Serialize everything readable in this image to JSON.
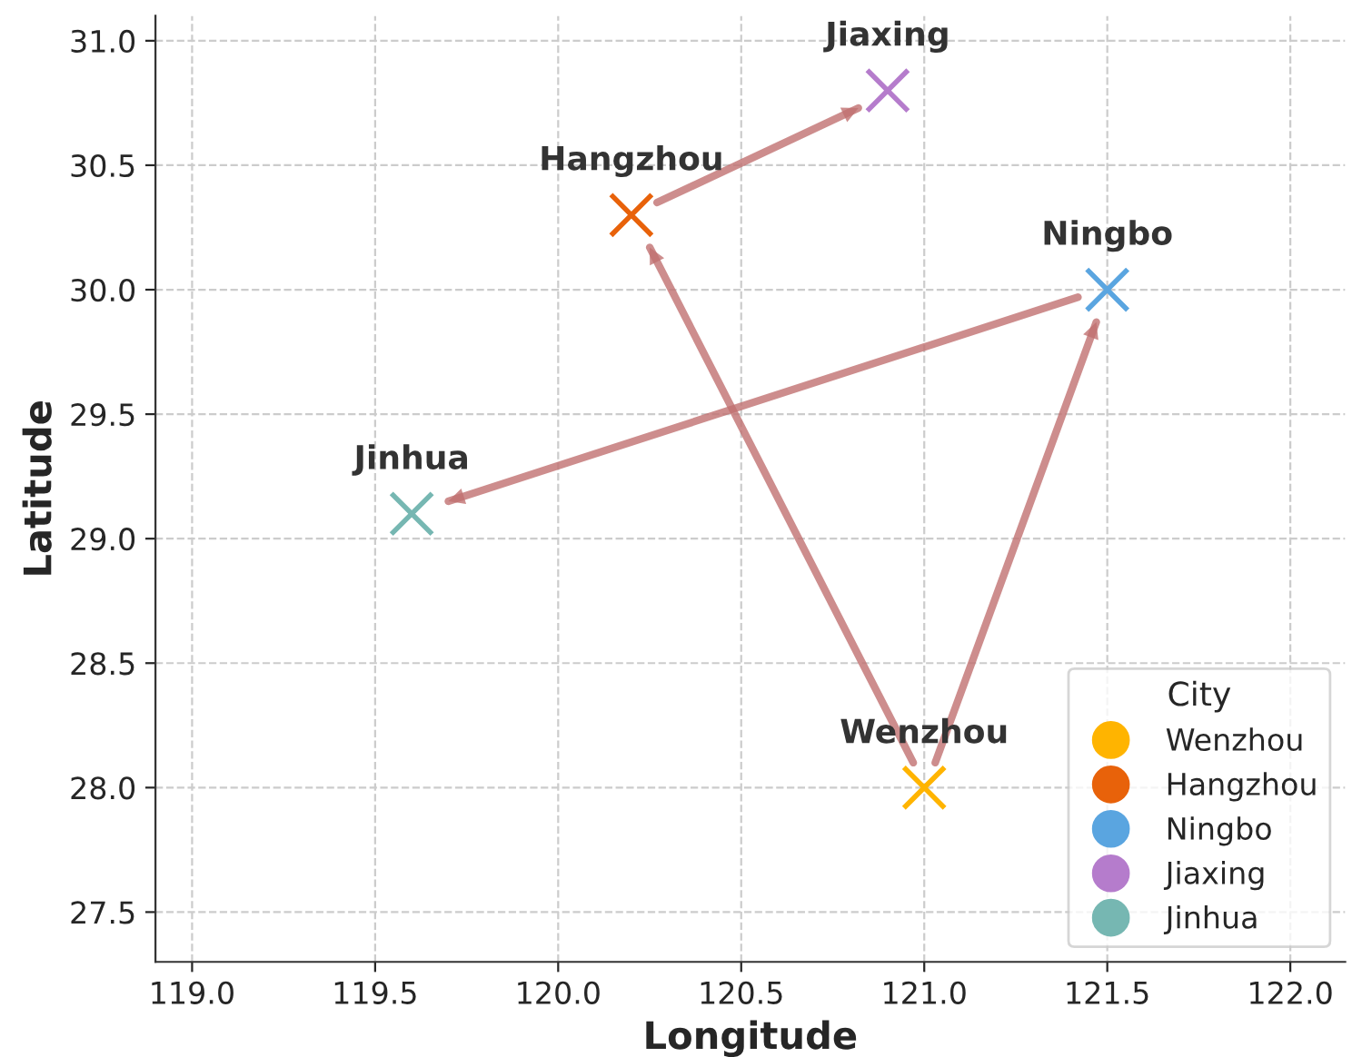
{
  "chart_data": {
    "type": "scatter",
    "xlabel": "Longitude",
    "ylabel": "Latitude",
    "legend_title": "City",
    "legend": "bottom right",
    "grid": true,
    "marker": "cross",
    "xlim": [
      118.9,
      122.15
    ],
    "ylim": [
      27.3,
      31.1
    ],
    "xticks": [
      {
        "value": 119,
        "label": "119.0"
      },
      {
        "value": 119.5,
        "label": "119.5"
      },
      {
        "value": 120,
        "label": "120.0"
      },
      {
        "value": 120.5,
        "label": "120.5"
      },
      {
        "value": 121,
        "label": "121.0"
      },
      {
        "value": 121.5,
        "label": "121.5"
      },
      {
        "value": 122,
        "label": "122.0"
      }
    ],
    "yticks": [
      {
        "value": 27.5,
        "label": "27.5"
      },
      {
        "value": 28,
        "label": "28.0"
      },
      {
        "value": 28.5,
        "label": "28.5"
      },
      {
        "value": 29,
        "label": "29.0"
      },
      {
        "value": 29.5,
        "label": "29.5"
      },
      {
        "value": 30,
        "label": "30.0"
      },
      {
        "value": 30.5,
        "label": "30.5"
      },
      {
        "value": 31,
        "label": "31.0"
      }
    ],
    "series": [
      {
        "name": "Wenzhou",
        "color": "#ffb400",
        "x": [
          121.0
        ],
        "values": [
          28.0
        ]
      },
      {
        "name": "Hangzhou",
        "color": "#e8620a",
        "x": [
          120.2
        ],
        "values": [
          30.3
        ]
      },
      {
        "name": "Ningbo",
        "color": "#5aa5e0",
        "x": [
          121.5
        ],
        "values": [
          30.0
        ]
      },
      {
        "name": "Jiaxing",
        "color": "#b57ccc",
        "x": [
          120.9
        ],
        "values": [
          30.8
        ]
      },
      {
        "name": "Jinhua",
        "color": "#76b7b2",
        "x": [
          119.6
        ],
        "values": [
          29.1
        ]
      },
      {
        "type": "line",
        "marker": "none",
        "color": "#c07070",
        "x": [
          120.97,
          120.25
        ],
        "values": [
          28.1,
          30.17
        ]
      },
      {
        "type": "line",
        "marker": "none",
        "color": "#c07070",
        "x": [
          121.03,
          121.47
        ],
        "values": [
          28.1,
          29.87
        ]
      },
      {
        "type": "line",
        "marker": "none",
        "color": "#c07070",
        "x": [
          121.42,
          119.7
        ],
        "values": [
          29.97,
          29.15
        ]
      },
      {
        "type": "line",
        "marker": "none",
        "color": "#c07070",
        "x": [
          120.27,
          120.82
        ],
        "values": [
          30.35,
          30.73
        ]
      }
    ]
  }
}
